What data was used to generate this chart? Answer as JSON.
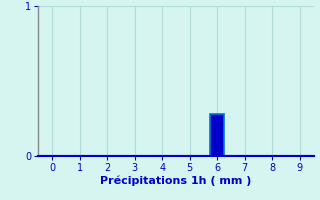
{
  "categories": [
    0,
    1,
    2,
    3,
    4,
    5,
    6,
    7,
    8,
    9
  ],
  "values": [
    0,
    0,
    0,
    0,
    0,
    0,
    0.28,
    0,
    0,
    0
  ],
  "bar_color": "#0000cc",
  "bar_edge_color": "#0077cc",
  "xlabel": "Précipitations 1h ( mm )",
  "xlim": [
    -0.5,
    9.5
  ],
  "ylim": [
    0,
    1.0
  ],
  "yticks": [
    0,
    1
  ],
  "xticks": [
    0,
    1,
    2,
    3,
    4,
    5,
    6,
    7,
    8,
    9
  ],
  "background_color": "#d6f5f0",
  "grid_color": "#b0ddd8",
  "tick_color": "#0000cc",
  "label_color": "#0000cc",
  "left_spine_color": "#888888",
  "bottom_line_color": "#0000cc",
  "xlabel_fontsize": 8,
  "tick_fontsize": 7,
  "bar_width": 0.5
}
